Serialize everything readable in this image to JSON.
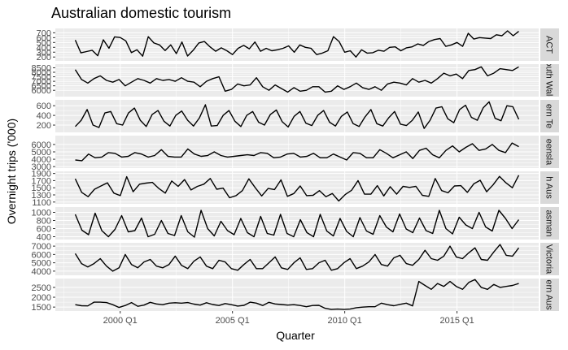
{
  "chart_data": {
    "type": "line",
    "title": "Australian domestic tourism",
    "xlabel": "Quarter",
    "ylabel": "Overnight trips ('000)",
    "x_ticks": [
      "2000 Q1",
      "2005 Q1",
      "2010 Q1",
      "2015 Q1"
    ],
    "x_tick_pos": [
      2000.0,
      2005.0,
      2010.0,
      2015.0
    ],
    "x_start": 1998.0,
    "x_end": 2017.75,
    "line_color": "#000000",
    "panel_bg": "#ebebeb",
    "strip_bg": "#d9d9d9",
    "grid": true,
    "panels": [
      {
        "strip": "ACT",
        "ylim": [
          120,
          790
        ],
        "yticks": [
          200,
          300,
          400,
          500,
          600,
          700
        ],
        "values": [
          551,
          286,
          312,
          340,
          227,
          556,
          381,
          616,
          603,
          534,
          291,
          349,
          217,
          619,
          490,
          450,
          335,
          450,
          270,
          510,
          220,
          340,
          490,
          520,
          410,
          320,
          390,
          330,
          250,
          380,
          440,
          370,
          510,
          320,
          380,
          330,
          350,
          380,
          430,
          300,
          450,
          400,
          380,
          250,
          280,
          330,
          620,
          520,
          300,
          330,
          200,
          350,
          280,
          290,
          340,
          320,
          400,
          410,
          330,
          390,
          410,
          470,
          440,
          520,
          560,
          580,
          420,
          450,
          500,
          420,
          690,
          570,
          600,
          590,
          580,
          660,
          640,
          740,
          640,
          730
        ]
      },
      {
        "strip": "South Wales",
        "ylim": [
          5300,
          8900
        ],
        "yticks": [
          6000,
          6500,
          7000,
          7500,
          8000,
          8500
        ],
        "values": [
          8300,
          7200,
          6800,
          7300,
          7600,
          7100,
          6900,
          7200,
          6500,
          6900,
          7300,
          7100,
          6800,
          7300,
          7100,
          7200,
          7000,
          7400,
          7000,
          6900,
          6400,
          7000,
          7300,
          7500,
          5900,
          6100,
          6700,
          6500,
          6600,
          7400,
          6400,
          6000,
          6600,
          6200,
          5800,
          6300,
          5900,
          6000,
          6400,
          6400,
          5800,
          5900,
          6500,
          6100,
          6400,
          6800,
          6300,
          6100,
          6400,
          6000,
          6700,
          6900,
          6800,
          6600,
          7300,
          6900,
          7100,
          6800,
          7300,
          7900,
          7600,
          7800,
          7300,
          8200,
          8300,
          8600,
          7600,
          7900,
          8400,
          8300,
          8200,
          8600
        ]
      },
      {
        "strip": "ern Te",
        "ylim": [
          50,
          720
        ],
        "yticks": [
          200,
          400,
          600
        ],
        "values": [
          170,
          300,
          520,
          200,
          150,
          450,
          480,
          230,
          200,
          450,
          550,
          300,
          170,
          420,
          500,
          280,
          180,
          400,
          490,
          300,
          180,
          350,
          620,
          180,
          190,
          400,
          500,
          280,
          170,
          400,
          480,
          260,
          200,
          420,
          510,
          270,
          160,
          380,
          480,
          240,
          190,
          400,
          500,
          260,
          180,
          380,
          470,
          230,
          170,
          370,
          520,
          230,
          180,
          350,
          480,
          220,
          190,
          300,
          470,
          130,
          300,
          550,
          580,
          330,
          250,
          520,
          610,
          360,
          300,
          560,
          680,
          340,
          290,
          600,
          580,
          320
        ]
      },
      {
        "strip": "eensla",
        "ylim": [
          2800,
          7200
        ],
        "yticks": [
          3000,
          4000,
          5000,
          6000
        ],
        "values": [
          3900,
          3800,
          4700,
          4200,
          4300,
          4900,
          4800,
          4300,
          4400,
          4900,
          4700,
          4300,
          4500,
          5300,
          4400,
          4300,
          4300,
          5400,
          4700,
          4400,
          4500,
          5000,
          4500,
          4300,
          4400,
          4500,
          4600,
          4500,
          4900,
          4800,
          4200,
          4300,
          4700,
          4800,
          4300,
          4400,
          4800,
          4200,
          4200,
          4700,
          4300,
          3900,
          4900,
          4800,
          4200,
          4200,
          5300,
          4800,
          4200,
          4600,
          5000,
          4100,
          5200,
          5500,
          4600,
          4200,
          5200,
          5800,
          5000,
          5600,
          6100,
          5200,
          5400,
          6000,
          5200,
          4900,
          6200,
          5700
        ]
      },
      {
        "strip": "h Aus",
        "ylim": [
          1050,
          1960
        ],
        "yticks": [
          1100,
          1300,
          1500,
          1700,
          1900
        ],
        "values": [
          1750,
          1370,
          1250,
          1460,
          1550,
          1640,
          1350,
          1280,
          1810,
          1390,
          1600,
          1630,
          1650,
          1480,
          1350,
          1690,
          1540,
          1730,
          1440,
          1540,
          1600,
          1760,
          1460,
          1490,
          1220,
          1280,
          1420,
          1750,
          1500,
          1270,
          1480,
          1450,
          1720,
          1260,
          1340,
          1550,
          1280,
          1290,
          1420,
          1250,
          1340,
          1130,
          1310,
          1430,
          1700,
          1320,
          1320,
          1560,
          1270,
          1530,
          1320,
          1540,
          1510,
          1540,
          1290,
          1260,
          1760,
          1420,
          1360,
          1550,
          1560,
          1370,
          1610,
          1710,
          1390,
          1580,
          1820,
          1640,
          1500,
          1850
        ]
      },
      {
        "strip": "asman",
        "ylim": [
          330,
          1130
        ],
        "yticks": [
          400,
          600,
          800,
          1000
        ],
        "values": [
          950,
          560,
          450,
          980,
          550,
          400,
          580,
          920,
          520,
          550,
          860,
          400,
          460,
          800,
          480,
          430,
          920,
          520,
          390,
          1050,
          600,
          420,
          780,
          550,
          450,
          850,
          500,
          400,
          900,
          480,
          440,
          950,
          480,
          400,
          820,
          500,
          400,
          950,
          540,
          420,
          850,
          530,
          400,
          870,
          540,
          460,
          920,
          640,
          520,
          960,
          590,
          500,
          860,
          550,
          480,
          1050,
          600,
          470,
          880,
          690,
          600,
          1000,
          640,
          540,
          1050,
          850,
          600,
          820
        ]
      },
      {
        "strip": "Victoria",
        "ylim": [
          3500,
          7400
        ],
        "yticks": [
          4000,
          5000,
          6000,
          7000
        ],
        "values": [
          6100,
          4900,
          4500,
          4900,
          5500,
          4600,
          4000,
          4400,
          6000,
          4800,
          4400,
          5100,
          5400,
          4600,
          4400,
          4800,
          5800,
          4700,
          4300,
          5200,
          5700,
          4600,
          4300,
          5300,
          5100,
          4300,
          4100,
          4800,
          5400,
          4300,
          4300,
          5000,
          5700,
          4400,
          4200,
          5000,
          5600,
          4200,
          4300,
          5000,
          5300,
          4100,
          4300,
          5000,
          5500,
          4300,
          4600,
          5100,
          6000,
          4800,
          4600,
          5600,
          5900,
          4900,
          4700,
          5400,
          6500,
          5500,
          5300,
          5800,
          7000,
          5700,
          5500,
          6200,
          6800,
          5400,
          5300,
          6300,
          7200,
          5900,
          5800,
          6800
        ]
      },
      {
        "strip": "ern Aus",
        "ylim": [
          1300,
          2950
        ],
        "yticks": [
          1500,
          2000,
          2500
        ],
        "values": [
          1620,
          1570,
          1560,
          1750,
          1750,
          1730,
          1620,
          1480,
          1580,
          1730,
          1540,
          1600,
          1740,
          1660,
          1620,
          1700,
          1720,
          1700,
          1730,
          1650,
          1600,
          1720,
          1630,
          1580,
          1680,
          1620,
          1550,
          1590,
          1750,
          1700,
          1580,
          1740,
          1660,
          1630,
          1600,
          1620,
          1580,
          1520,
          1580,
          1590,
          1440,
          1380,
          1400,
          1380,
          1400,
          1470,
          1500,
          1520,
          1520,
          1700,
          1620,
          1570,
          1640,
          1700,
          1560,
          2800,
          2600,
          2400,
          2700,
          2550,
          2800,
          2550,
          2400,
          2750,
          2900,
          2500,
          2400,
          2650,
          2500,
          2550,
          2600,
          2700
        ]
      }
    ]
  }
}
